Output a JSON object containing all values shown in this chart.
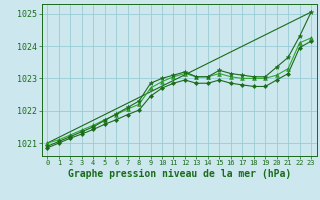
{
  "background_color": "#cce8ee",
  "grid_color": "#99ccd6",
  "line_color_dark": "#1a6b1a",
  "line_color_light": "#2da82d",
  "xlabel": "Graphe pression niveau de la mer (hPa)",
  "ylim": [
    1020.6,
    1025.3
  ],
  "xlim": [
    -0.5,
    23.5
  ],
  "yticks": [
    1021,
    1022,
    1023,
    1024,
    1025
  ],
  "xticks": [
    0,
    1,
    2,
    3,
    4,
    5,
    6,
    7,
    8,
    9,
    10,
    11,
    12,
    13,
    14,
    15,
    16,
    17,
    18,
    19,
    20,
    21,
    22,
    23
  ],
  "series_straight": {
    "x": [
      0,
      23
    ],
    "y": [
      1021.0,
      1025.05
    ]
  },
  "series1": {
    "x": [
      0,
      1,
      2,
      3,
      4,
      5,
      6,
      7,
      8,
      9,
      10,
      11,
      12,
      13,
      14,
      15,
      16,
      17,
      18,
      19,
      20,
      21,
      22,
      23
    ],
    "y": [
      1020.9,
      1021.05,
      1021.2,
      1021.35,
      1021.5,
      1021.7,
      1021.9,
      1022.1,
      1022.3,
      1022.85,
      1023.0,
      1023.1,
      1023.2,
      1023.05,
      1023.05,
      1023.25,
      1023.15,
      1023.1,
      1023.05,
      1023.05,
      1023.35,
      1023.65,
      1024.3,
      1025.05
    ]
  },
  "series2": {
    "x": [
      0,
      1,
      2,
      3,
      4,
      5,
      6,
      7,
      8,
      9,
      10,
      11,
      12,
      13,
      14,
      15,
      16,
      17,
      18,
      19,
      20,
      21,
      22,
      23
    ],
    "y": [
      1021.0,
      1021.1,
      1021.25,
      1021.4,
      1021.55,
      1021.72,
      1021.88,
      1022.05,
      1022.2,
      1022.7,
      1022.9,
      1023.05,
      1023.15,
      1023.05,
      1023.05,
      1023.15,
      1023.05,
      1023.0,
      1023.0,
      1023.0,
      1023.1,
      1023.3,
      1024.1,
      1024.25
    ]
  },
  "series3": {
    "x": [
      0,
      1,
      2,
      3,
      4,
      5,
      6,
      7,
      8,
      9,
      10,
      11,
      12,
      13,
      14,
      15,
      16,
      17,
      18,
      19,
      20,
      21,
      22,
      23
    ],
    "y": [
      1020.85,
      1021.0,
      1021.15,
      1021.28,
      1021.42,
      1021.58,
      1021.72,
      1021.88,
      1022.02,
      1022.45,
      1022.7,
      1022.85,
      1022.95,
      1022.85,
      1022.85,
      1022.95,
      1022.85,
      1022.8,
      1022.75,
      1022.75,
      1022.95,
      1023.15,
      1023.95,
      1024.15
    ]
  }
}
